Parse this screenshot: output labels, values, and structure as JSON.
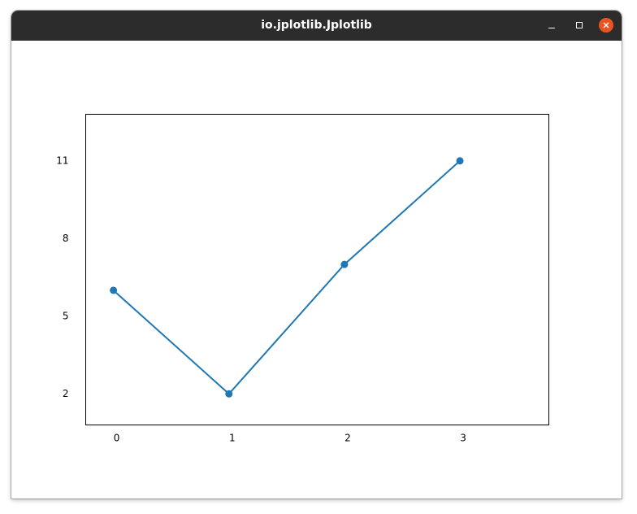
{
  "window": {
    "title": "io.jplotlib.Jplotlib",
    "buttons": {
      "minimize_icon": "minimize-icon",
      "maximize_icon": "maximize-icon",
      "close_icon": "close-icon",
      "close_color": "#e95420"
    }
  },
  "chart_data": {
    "type": "line",
    "x": [
      0,
      1,
      2,
      3
    ],
    "y": [
      6.0,
      2.0,
      7.0,
      11.0
    ],
    "series": [
      {
        "values": [
          6.0,
          2.0,
          7.0,
          11.0
        ],
        "color": "#1f77b4"
      }
    ],
    "marker": "circle",
    "xticks": [
      "0",
      "1",
      "2",
      "3"
    ],
    "yticks": [
      "2",
      "5",
      "8",
      "11"
    ],
    "xtick_values": [
      0,
      1,
      2,
      3
    ],
    "ytick_values": [
      2,
      5,
      8,
      11
    ],
    "xlim": [
      -0.24,
      3.77
    ],
    "ylim": [
      0.8,
      12.8
    ],
    "title": "",
    "xlabel": "",
    "ylabel": "",
    "grid": false,
    "legend": false
  }
}
